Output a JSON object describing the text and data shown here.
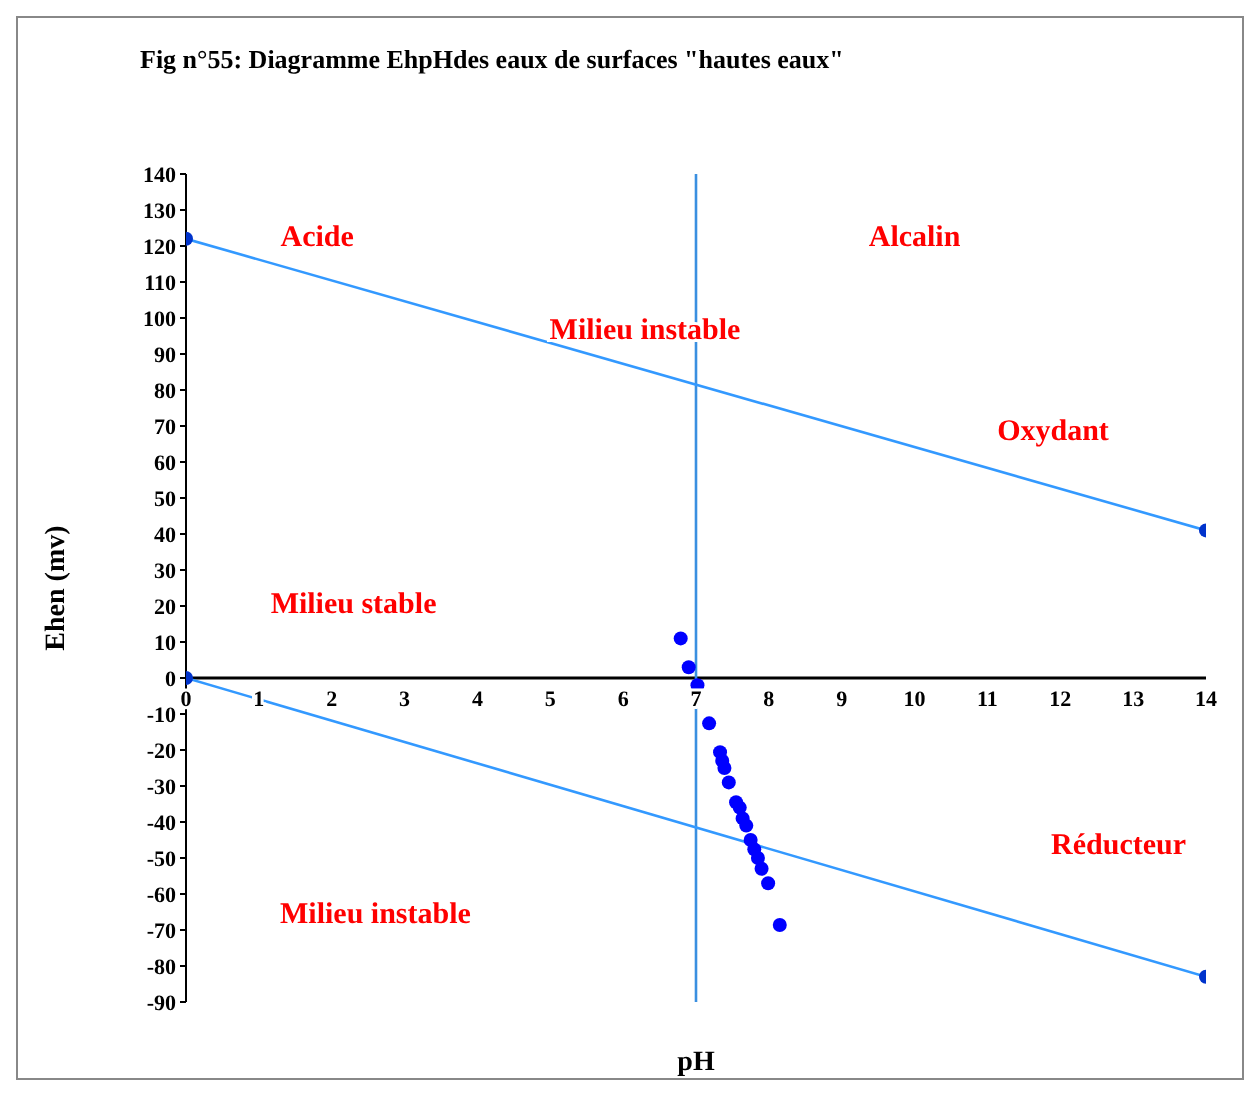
{
  "chart_data": {
    "type": "scatter",
    "title": "Fig n°55:  Diagramme EhpHdes eaux de surfaces \"hautes eaux\"",
    "xlabel": "pH",
    "ylabel": "Ehen (mv)",
    "xlim": [
      0,
      14
    ],
    "xticks": [
      0,
      1,
      2,
      3,
      4,
      5,
      6,
      7,
      8,
      9,
      10,
      11,
      12,
      13,
      14
    ],
    "ylim": [
      -90,
      140
    ],
    "yticks": [
      -90,
      -80,
      -70,
      -60,
      -50,
      -40,
      -30,
      -20,
      -10,
      0,
      10,
      20,
      30,
      40,
      50,
      60,
      70,
      80,
      90,
      100,
      110,
      120,
      130,
      140
    ],
    "marker": "circle",
    "series": [
      {
        "type": "line",
        "color": "#3399ff",
        "x": [
          0,
          14
        ],
        "values": [
          122,
          41
        ]
      },
      {
        "type": "line",
        "color": "#3399ff",
        "x": [
          0,
          14
        ],
        "values": [
          0,
          -83
        ]
      },
      {
        "color": "#0000ff",
        "x": [
          6.79,
          6.9,
          7.02,
          7.18,
          7.33,
          7.36,
          7.39,
          7.45,
          7.55,
          7.6,
          7.64,
          7.69,
          7.75,
          7.8,
          7.85,
          7.9,
          7.99,
          8.15
        ],
        "values": [
          11,
          3,
          -2,
          -12.6,
          -20.6,
          -23,
          -25,
          -29,
          -34.5,
          -36,
          -39,
          -41,
          -45,
          -47.6,
          -50,
          -53,
          -57,
          -68.6
        ]
      }
    ],
    "ref_lines": [
      {
        "axis": "x",
        "value": 7,
        "color": "#3a8fe0"
      }
    ],
    "annotations": [
      "Acide",
      "Alcalin",
      "Milieu instable",
      "Oxydant",
      "Milieu stable",
      "Réducteur",
      "Milieu instable"
    ]
  }
}
